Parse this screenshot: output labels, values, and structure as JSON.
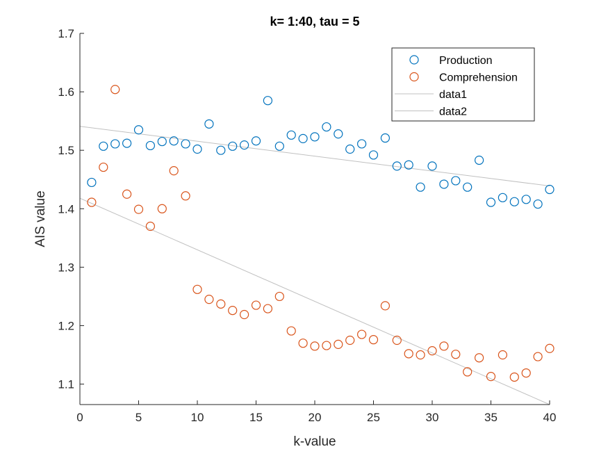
{
  "chart_data": {
    "type": "scatter",
    "title": "k= 1:40, tau = 5",
    "xlabel": "k-value",
    "ylabel": "AIS value",
    "xlim": [
      0,
      40
    ],
    "ylim": [
      1.065,
      1.7
    ],
    "xticks": [
      0,
      5,
      10,
      15,
      20,
      25,
      30,
      35,
      40
    ],
    "yticks": [
      1.1,
      1.2,
      1.3,
      1.4,
      1.5,
      1.6,
      1.7
    ],
    "x_tick_labels": [
      "0",
      "5",
      "10",
      "15",
      "20",
      "25",
      "30",
      "35",
      "40"
    ],
    "y_tick_labels": [
      "1.1",
      "1.2",
      "1.3",
      "1.4",
      "1.5",
      "1.6",
      "1.7"
    ],
    "grid": false,
    "legend_position": "top-right",
    "x": [
      1,
      2,
      3,
      4,
      5,
      6,
      7,
      8,
      9,
      10,
      11,
      12,
      13,
      14,
      15,
      16,
      17,
      18,
      19,
      20,
      21,
      22,
      23,
      24,
      25,
      26,
      27,
      28,
      29,
      30,
      31,
      32,
      33,
      34,
      35,
      36,
      37,
      38,
      39,
      40
    ],
    "series": [
      {
        "name": "Production",
        "marker": "circle",
        "color": "#0072BD",
        "values": [
          1.445,
          1.507,
          1.511,
          1.512,
          1.535,
          1.508,
          1.515,
          1.516,
          1.511,
          1.502,
          1.545,
          1.5,
          1.507,
          1.509,
          1.516,
          1.585,
          1.507,
          1.526,
          1.52,
          1.523,
          1.54,
          1.528,
          1.502,
          1.511,
          1.492,
          1.521,
          1.473,
          1.475,
          1.437,
          1.473,
          1.442,
          1.448,
          1.437,
          1.483,
          1.411,
          1.419,
          1.412,
          1.416,
          1.408,
          1.433
        ]
      },
      {
        "name": "Comprehension",
        "marker": "circle",
        "color": "#D95319",
        "values": [
          1.411,
          1.471,
          1.604,
          1.425,
          1.399,
          1.37,
          1.4,
          1.465,
          1.422,
          1.262,
          1.245,
          1.237,
          1.226,
          1.219,
          1.235,
          1.229,
          1.25,
          1.191,
          1.17,
          1.165,
          1.166,
          1.168,
          1.175,
          1.185,
          1.176,
          1.234,
          1.175,
          1.152,
          1.15,
          1.157,
          1.165,
          1.151,
          1.121,
          1.145,
          1.113,
          1.15,
          1.112,
          1.119,
          1.147,
          1.161
        ]
      },
      {
        "name": "data1",
        "type": "line",
        "color": "#C0C0C0",
        "x": [
          0,
          40
        ],
        "values": [
          1.541,
          1.439
        ]
      },
      {
        "name": "data2",
        "type": "line",
        "color": "#C0C0C0",
        "x": [
          0,
          40
        ],
        "values": [
          1.418,
          1.065
        ]
      }
    ]
  }
}
